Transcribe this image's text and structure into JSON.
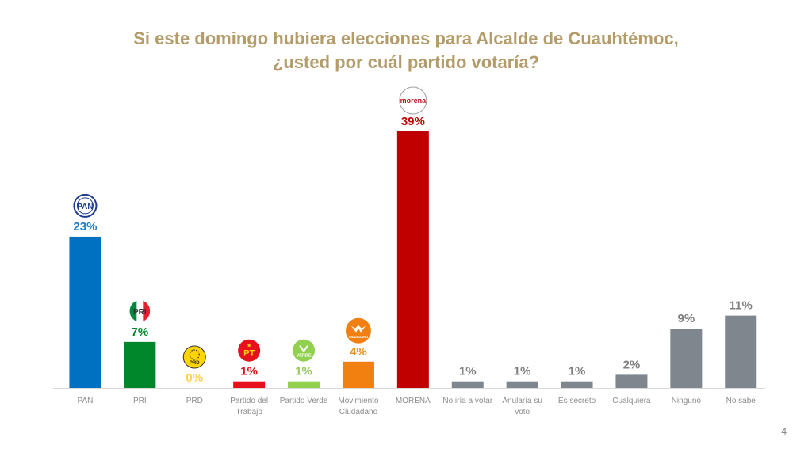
{
  "slide": {
    "title_line1": "Si este domingo hubiera elecciones para Alcalde de Cuauhtémoc,",
    "title_line2": "¿usted por cuál partido votaría?",
    "page_number": "4"
  },
  "chart_data": {
    "type": "bar",
    "title": "Si este domingo hubiera elecciones para Alcalde de Cuauhtémoc, ¿usted por cuál partido votaría?",
    "xlabel": "",
    "ylabel": "",
    "ylim": [
      0,
      39
    ],
    "grid": false,
    "unit": "%",
    "categories": [
      "PAN",
      "PRI",
      "PRD",
      "Partido del Trabajo",
      "Partido Verde",
      "Movimiento Ciudadano",
      "MORENA",
      "No iría a votar",
      "Anularía su voto",
      "Es secreto",
      "Cualquiera",
      "Ninguno",
      "No sabe"
    ],
    "label_lines": [
      [
        "PAN"
      ],
      [
        "PRI"
      ],
      [
        "PRD"
      ],
      [
        "Partido del",
        "Trabajo"
      ],
      [
        "Partido Verde"
      ],
      [
        "Movimiento",
        "Ciudadano"
      ],
      [
        "MORENA"
      ],
      [
        "No iría a votar"
      ],
      [
        "Anularía su",
        "voto"
      ],
      [
        "Es secreto"
      ],
      [
        "Cualquiera"
      ],
      [
        "Ninguno"
      ],
      [
        "No sabe"
      ]
    ],
    "values": [
      23,
      7,
      0,
      1,
      1,
      4,
      39,
      1,
      1,
      1,
      2,
      9,
      11
    ],
    "value_labels": [
      "23%",
      "7%",
      "0%",
      "1%",
      "1%",
      "4%",
      "39%",
      "1%",
      "1%",
      "1%",
      "2%",
      "9%",
      "11%"
    ],
    "colors": [
      "#0070c0",
      "#00872b",
      "#ffd500",
      "#e8101a",
      "#92d050",
      "#f28010",
      "#c00000",
      "#7f868d",
      "#7f868d",
      "#7f868d",
      "#7f868d",
      "#7f868d",
      "#7f868d"
    ],
    "label_colors": [
      "#1f7dc6",
      "#00872b",
      "#ffd24a",
      "#d9111a",
      "#92c85a",
      "#e7901f",
      "#c00000",
      "#7f7f7f",
      "#7f7f7f",
      "#7f7f7f",
      "#7f7f7f",
      "#7f7f7f",
      "#7f7f7f"
    ],
    "logos": [
      "pan-logo",
      "pri-logo",
      "prd-logo",
      "pt-logo",
      "verde-logo",
      "mc-logo",
      "morena-logo",
      null,
      null,
      null,
      null,
      null,
      null
    ],
    "logo_text": [
      "PAN",
      "PRI",
      "PRD",
      "PT",
      "VERDE",
      "MC",
      "morena",
      null,
      null,
      null,
      null,
      null,
      null
    ]
  }
}
